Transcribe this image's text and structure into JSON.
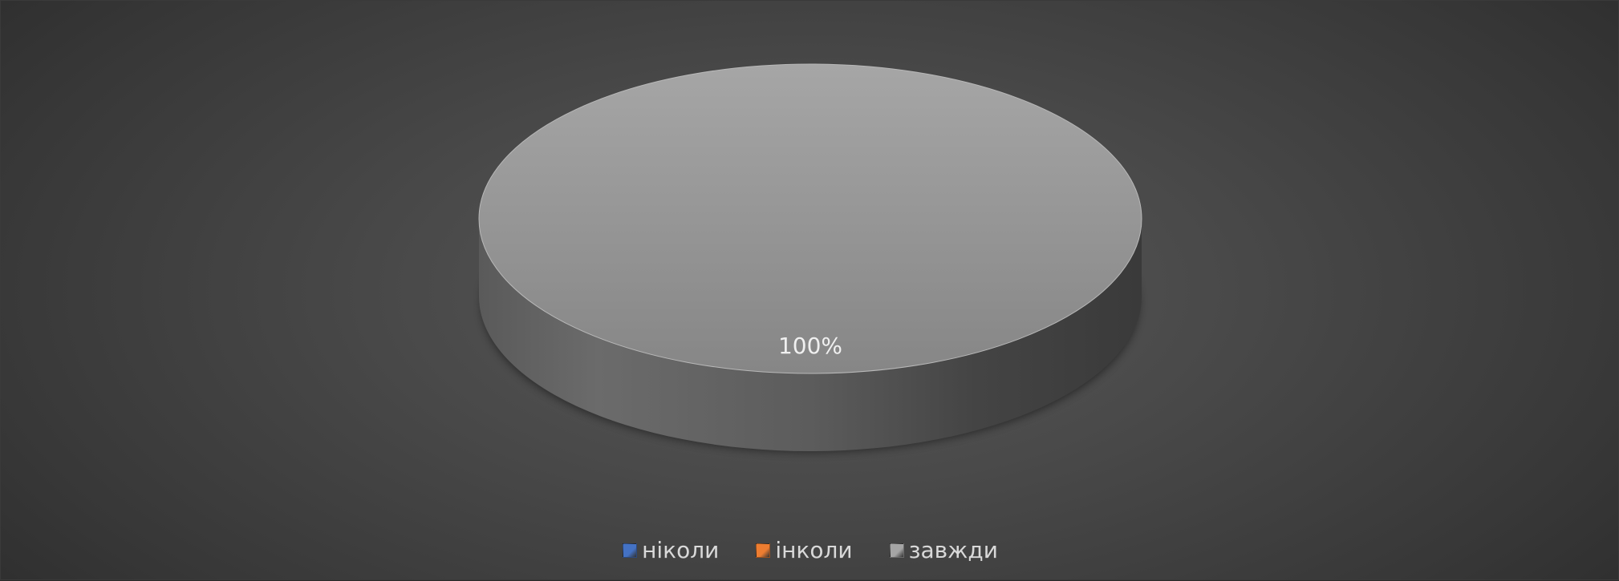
{
  "chart_data": {
    "type": "pie",
    "style": "3d",
    "categories": [
      "ніколи",
      "інколи",
      "завжди"
    ],
    "values": [
      0,
      0,
      100
    ],
    "data_labels": [
      "",
      "",
      "100%"
    ],
    "colors": [
      "#4472c4",
      "#ed7d31",
      "#a5a5a5"
    ],
    "legend_position": "bottom",
    "title": ""
  }
}
